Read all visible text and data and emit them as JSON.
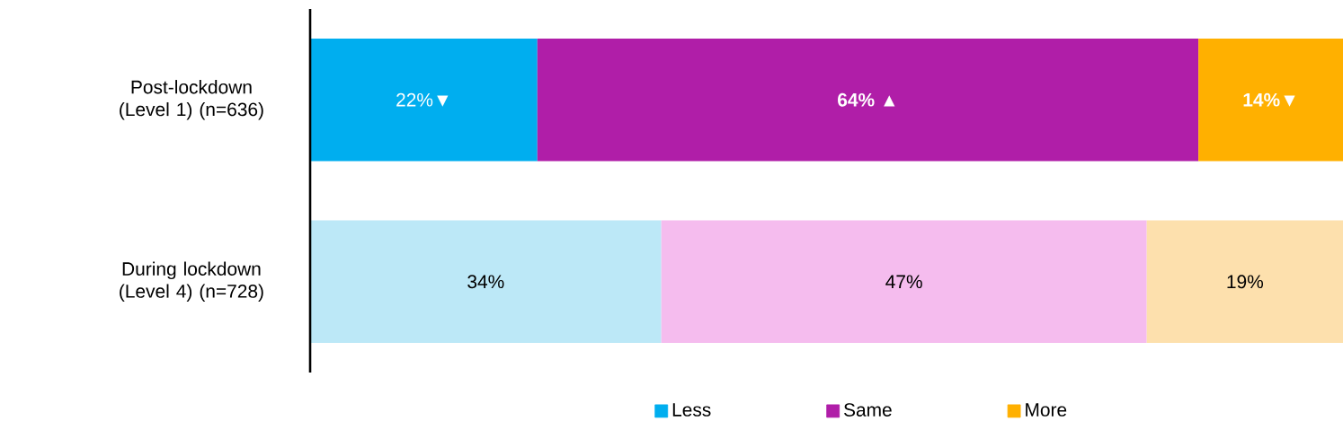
{
  "chart_data": {
    "type": "bar",
    "orientation": "horizontal",
    "stacked": true,
    "categories": [
      "Post-lockdown (Level 1) (n=636)",
      "During lockdown (Level 4) (n=728)"
    ],
    "series": [
      {
        "name": "Less",
        "color": "#00aeef",
        "colors": [
          "#00aeef",
          "#bce8f7"
        ],
        "values": [
          22,
          34
        ],
        "value_labels": [
          "22%▼",
          "34%"
        ]
      },
      {
        "name": "Same",
        "color": "#b01ea8",
        "colors": [
          "#b01ea8",
          "#f5bcee"
        ],
        "values": [
          64,
          47
        ],
        "value_labels": [
          "**64% ▲**",
          "47%"
        ]
      },
      {
        "name": "More",
        "color": "#ffb000",
        "colors": [
          "#ffb000",
          "#fde0ad"
        ],
        "values": [
          14,
          19
        ],
        "value_labels": [
          "**14%▼**",
          "19%"
        ]
      }
    ],
    "xlim": [
      0,
      100
    ],
    "tick_labels": "y",
    "legend": "bottom"
  }
}
